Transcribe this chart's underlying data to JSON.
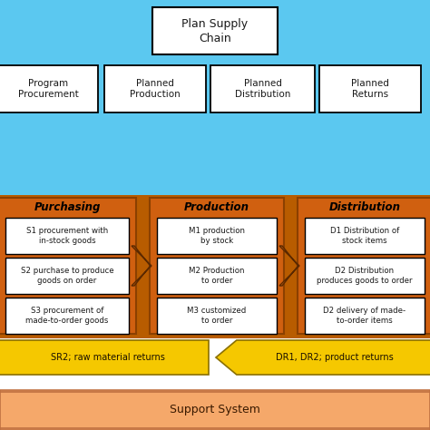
{
  "bg_blue": "#5BC8F0",
  "bg_orange_dark": "#CC6600",
  "bg_salmon": "#F5A86A",
  "bg_white": "#FFFFFF",
  "bg_yellow": "#F5C800",
  "plan_supply_chain": "Plan Supply\nChain",
  "top_boxes": [
    "Program\nProcurement",
    "Planned\nProduction",
    "Planned\nDistribution",
    "Planned\nReturns"
  ],
  "section_labels": [
    "Purchasing",
    "Production",
    "Distribution"
  ],
  "purchasing_items": [
    "S1 procurement with\nin-stock goods",
    "S2 purchase to produce\ngoods on order",
    "S3 procurement of\nmade-to-order goods"
  ],
  "production_items": [
    "M1 production\nby stock",
    "M2 Production\nto order",
    "M3 customized\nto order"
  ],
  "distribution_items": [
    "D1 Distribution of\nstock items",
    "D2 Distribution\nproduces goods to order",
    "D2 delivery of made-\nto-order items"
  ],
  "return_left": "SR2; raw material returns",
  "return_right": "DR1, DR2; product returns",
  "support": "Support System",
  "orange_panel": "#D4640A",
  "orange_arrow_color": "#D4640A"
}
